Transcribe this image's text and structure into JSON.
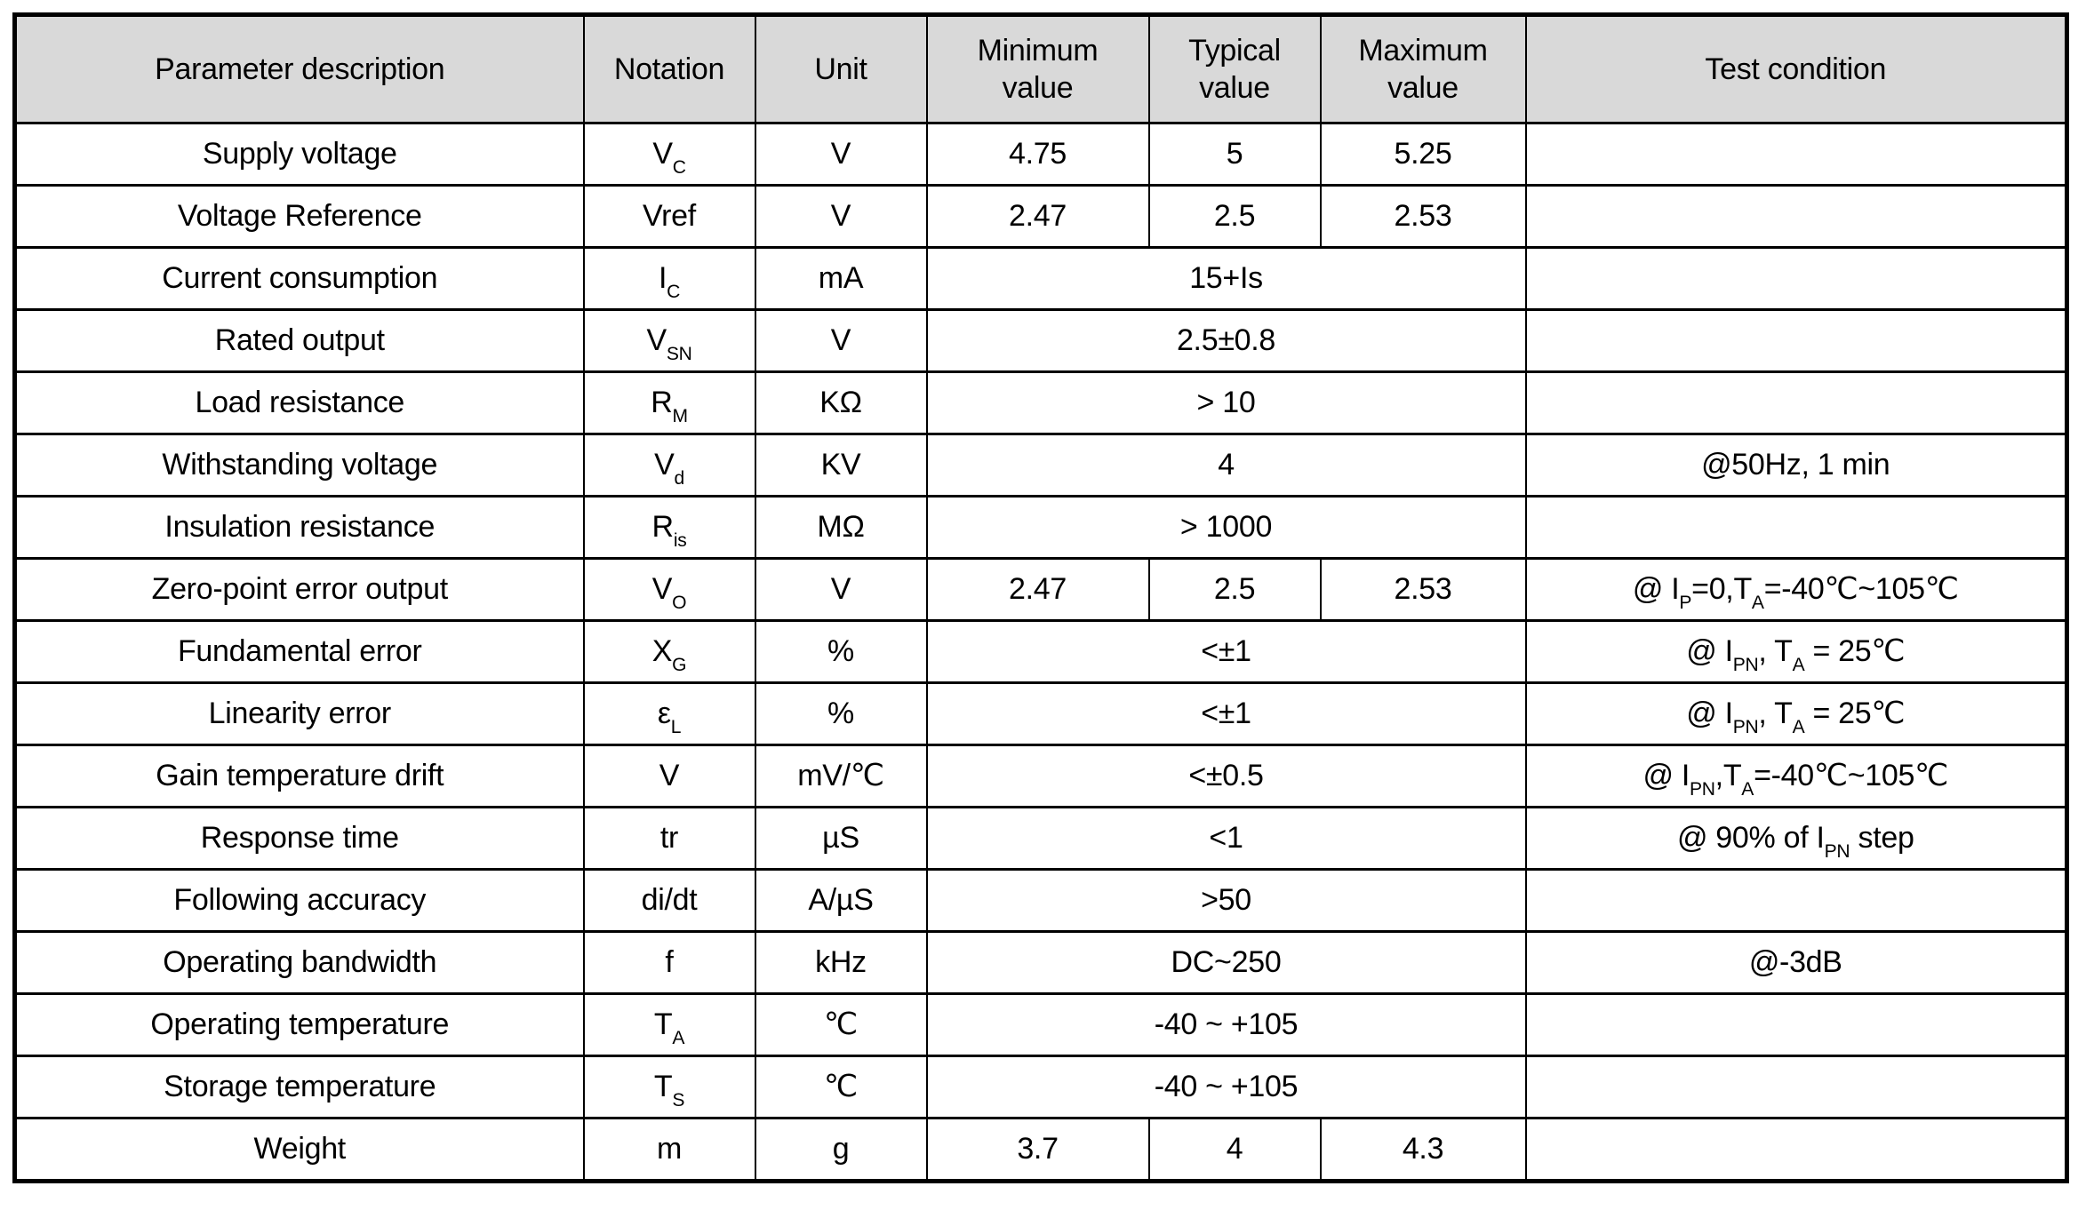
{
  "table": {
    "header_bg": "#d9d9d9",
    "border_color": "#000000",
    "headers": {
      "param": "Parameter description",
      "notation": "Notation",
      "unit": "Unit",
      "min": "Minimum value",
      "typ": "Typical value",
      "max": "Maximum value",
      "test": "Test condition"
    },
    "rows": [
      {
        "param": "Supply voltage",
        "notation": "V{C}",
        "unit": "V",
        "min": "4.75",
        "typ": "5",
        "max": "5.25",
        "test": ""
      },
      {
        "param": "Voltage Reference",
        "notation": "Vref",
        "unit": "V",
        "min": "2.47",
        "typ": "2.5",
        "max": "2.53",
        "test": ""
      },
      {
        "param": "Current consumption",
        "notation": "I{C}",
        "unit": "mA",
        "span": "15+Is",
        "test": ""
      },
      {
        "param": "Rated output",
        "notation": "V{SN}",
        "unit": "V",
        "span": "2.5±0.8",
        "test": ""
      },
      {
        "param": "Load resistance",
        "notation": "R{M}",
        "unit": "KΩ",
        "span": "> 10",
        "test": ""
      },
      {
        "param": "Withstanding voltage",
        "notation": "V{d}",
        "unit": "KV",
        "span": "4",
        "test": "@50Hz, 1 min"
      },
      {
        "param": "Insulation resistance",
        "notation": "R{is}",
        "unit": "MΩ",
        "span": "> 1000",
        "test": ""
      },
      {
        "param": "Zero-point error output",
        "notation": "V{O}",
        "unit": "V",
        "min": "2.47",
        "typ": "2.5",
        "max": "2.53",
        "test": "@ I{P}=0,T{A}=-40℃~105℃"
      },
      {
        "param": "Fundamental error",
        "notation": "X{G}",
        "unit": "%",
        "span": "<±1",
        "test": "@ I{PN}, T{A} = 25℃"
      },
      {
        "param": "Linearity error",
        "notation": "ε{L}",
        "unit": "%",
        "span": "<±1",
        "test": "@ I{PN}, T{A} = 25℃"
      },
      {
        "param": "Gain temperature drift",
        "notation": "V",
        "unit": "mV/℃",
        "span": "<±0.5",
        "test": "@ I{PN},T{A}=-40℃~105℃"
      },
      {
        "param": "Response time",
        "notation": "tr",
        "unit": "µS",
        "span": "<1",
        "test": "@ 90% of I{PN} step"
      },
      {
        "param": "Following accuracy",
        "notation": "di/dt",
        "unit": "A/µS",
        "span": ">50",
        "test": ""
      },
      {
        "param": "Operating bandwidth",
        "notation": "f",
        "unit": "kHz",
        "span": "DC~250",
        "test": "@-3dB"
      },
      {
        "param": "Operating temperature",
        "notation": "T{A}",
        "unit": "℃",
        "span": "-40 ~ +105",
        "test": ""
      },
      {
        "param": "Storage temperature",
        "notation": "T{S}",
        "unit": "℃",
        "span": "-40 ~ +105",
        "test": ""
      },
      {
        "param": "Weight",
        "notation": "m",
        "unit": "g",
        "min": "3.7",
        "typ": "4",
        "max": "4.3",
        "test": ""
      }
    ]
  }
}
